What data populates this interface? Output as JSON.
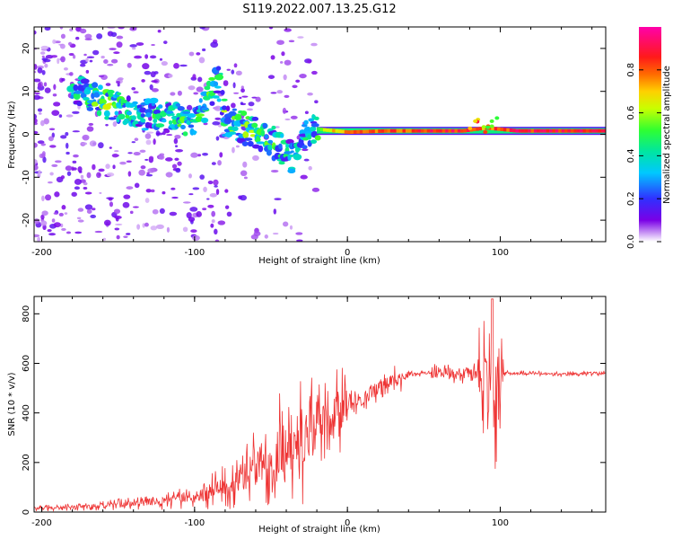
{
  "title": "S119.2022.007.13.25.G12",
  "colors": {
    "snr_line": "#ee3333",
    "axis": "#000000"
  },
  "chart_data": [
    {
      "type": "heatmap",
      "xlabel": "Height of straight line (km)",
      "ylabel": "Frequency (Hz)",
      "xlim": [
        -205,
        169
      ],
      "ylim": [
        -25,
        25
      ],
      "xticks": [
        -200,
        -100,
        0,
        100
      ],
      "yticks": [
        -20,
        -10,
        0,
        10,
        20
      ],
      "colorbar": {
        "label": "Normalized spectral amplitude",
        "range": [
          0,
          1
        ],
        "ticks": [
          0.0,
          0.2,
          0.4,
          0.6,
          0.8
        ],
        "tick_labels": [
          "0.0",
          "0.2",
          "0.4",
          "0.6",
          "0.8"
        ],
        "colormap": "rainbow (white-violet-blue-cyan-green-yellow-orange-red-magenta)"
      },
      "ridge": [
        {
          "x": -175,
          "y": 10,
          "a": 0.5
        },
        {
          "x": -160,
          "y": 7.5,
          "a": 0.65
        },
        {
          "x": -145,
          "y": 6,
          "a": 0.55
        },
        {
          "x": -130,
          "y": 4.5,
          "a": 0.5
        },
        {
          "x": -115,
          "y": 4,
          "a": 0.55
        },
        {
          "x": -100,
          "y": 2,
          "a": 0.55
        },
        {
          "x": -85,
          "y": 13,
          "a": 0.55
        },
        {
          "x": -80,
          "y": 3,
          "a": 0.6
        },
        {
          "x": -65,
          "y": 1,
          "a": 0.6
        },
        {
          "x": -50,
          "y": -1.5,
          "a": 0.55
        },
        {
          "x": -35,
          "y": -5.5,
          "a": 0.5
        },
        {
          "x": -25,
          "y": 1.5,
          "a": 0.45
        },
        {
          "x": -15,
          "y": 1.0,
          "a": 0.7
        },
        {
          "x": 0,
          "y": 0.5,
          "a": 0.8
        },
        {
          "x": 25,
          "y": 0.8,
          "a": 0.85
        },
        {
          "x": 50,
          "y": 0.8,
          "a": 0.9
        },
        {
          "x": 75,
          "y": 0.8,
          "a": 0.9
        },
        {
          "x": 90,
          "y": 1.5,
          "a": 0.8
        },
        {
          "x": 110,
          "y": 0.8,
          "a": 0.92
        },
        {
          "x": 140,
          "y": 0.8,
          "a": 0.92
        },
        {
          "x": 169,
          "y": 0.8,
          "a": 0.92
        }
      ]
    },
    {
      "type": "line",
      "xlabel": "Height of straight line (km)",
      "ylabel": "SNR (10 * v/v)",
      "xlim": [
        -205,
        169
      ],
      "ylim": [
        0,
        870
      ],
      "xticks": [
        -200,
        -100,
        0,
        100
      ],
      "yticks": [
        0,
        200,
        400,
        600,
        800
      ],
      "series": [
        {
          "color": "#ee3333",
          "x": [
            -205,
            -180,
            -160,
            -140,
            -120,
            -100,
            -90,
            -80,
            -70,
            -60,
            -50,
            -40,
            -35,
            -30,
            -25,
            -20,
            -15,
            -10,
            -5,
            0,
            10,
            20,
            30,
            40,
            50,
            60,
            70,
            80,
            85,
            90,
            92,
            95,
            98,
            100,
            110,
            120,
            140,
            160,
            169
          ],
          "y": [
            15,
            20,
            25,
            35,
            45,
            60,
            80,
            105,
            140,
            180,
            230,
            270,
            260,
            300,
            330,
            370,
            380,
            390,
            410,
            430,
            460,
            500,
            530,
            555,
            560,
            565,
            560,
            565,
            560,
            550,
            480,
            520,
            540,
            560,
            560,
            560,
            555,
            560,
            560
          ]
        }
      ]
    }
  ]
}
